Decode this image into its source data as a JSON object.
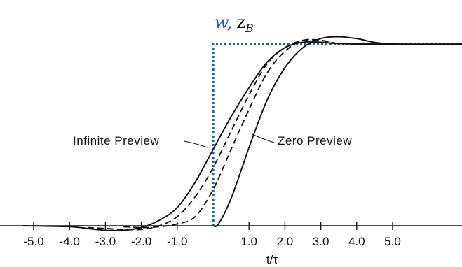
{
  "chart_data": {
    "type": "line",
    "xlabel": "t/τ",
    "ylabel": {
      "w": "w",
      "comma": ",",
      "z": "z",
      "sub": "B"
    },
    "xlim": [
      -6.0,
      8.0
    ],
    "ylim": [
      0,
      1.15
    ],
    "ticks": [
      -5.0,
      -4.0,
      -3.0,
      -2.0,
      -1.0,
      1.0,
      2.0,
      3.0,
      4.0,
      5.0
    ],
    "tick_labels": [
      "-5.0",
      "-4.0",
      "-3.0",
      "-2.0",
      "-1.0",
      "1.0",
      "2.0",
      "3.0",
      "4.0",
      "5.0"
    ],
    "grid": false,
    "annotations": [
      {
        "text": "Infinite Preview",
        "x": -4.4,
        "y": 0.46
      },
      {
        "text": "Zero Preview",
        "x": 1.6,
        "y": 0.46
      }
    ],
    "series": [
      {
        "style": "dotted",
        "color": "#1f5fb0",
        "points": [
          [
            0,
            0
          ],
          [
            0,
            1.0
          ],
          [
            7.8,
            1.0
          ]
        ]
      },
      {
        "style": "solid",
        "color": "#111111",
        "points": [
          [
            -5.3,
            0.0
          ],
          [
            -4.0,
            -0.005
          ],
          [
            -3.5,
            -0.015
          ],
          [
            -3.0,
            -0.025
          ],
          [
            -2.5,
            -0.025
          ],
          [
            -2.0,
            -0.01
          ],
          [
            -1.5,
            0.03
          ],
          [
            -1.0,
            0.1
          ],
          [
            -0.5,
            0.24
          ],
          [
            0,
            0.42
          ],
          [
            0.5,
            0.6
          ],
          [
            1.0,
            0.76
          ],
          [
            1.5,
            0.9
          ],
          [
            2.0,
            0.98
          ],
          [
            2.5,
            1.01
          ],
          [
            3.0,
            1.01
          ],
          [
            4.0,
            1.0
          ],
          [
            7.8,
            1.0
          ]
        ]
      },
      {
        "style": "dashed",
        "color": "#111111",
        "points": [
          [
            -3.5,
            -0.01
          ],
          [
            -3.0,
            -0.015
          ],
          [
            -2.5,
            -0.02
          ],
          [
            -2.0,
            -0.02
          ],
          [
            -1.5,
            0.0
          ],
          [
            -1.0,
            0.05
          ],
          [
            -0.5,
            0.16
          ],
          [
            0,
            0.32
          ],
          [
            0.5,
            0.52
          ],
          [
            1.0,
            0.72
          ],
          [
            1.5,
            0.89
          ],
          [
            2.0,
            0.98
          ],
          [
            2.5,
            1.02
          ],
          [
            3.0,
            1.02
          ],
          [
            3.5,
            1.0
          ]
        ]
      },
      {
        "style": "dashed",
        "color": "#111111",
        "points": [
          [
            -2.5,
            -0.005
          ],
          [
            -2.0,
            -0.01
          ],
          [
            -1.5,
            -0.005
          ],
          [
            -1.0,
            0.01
          ],
          [
            -0.5,
            0.05
          ],
          [
            0,
            0.2
          ],
          [
            0.5,
            0.42
          ],
          [
            1.0,
            0.64
          ],
          [
            1.5,
            0.84
          ],
          [
            2.0,
            0.96
          ],
          [
            2.5,
            1.02
          ],
          [
            3.0,
            1.02
          ],
          [
            3.5,
            1.0
          ]
        ]
      },
      {
        "style": "solid",
        "color": "#111111",
        "points": [
          [
            0,
            0.0
          ],
          [
            0.15,
            0.01
          ],
          [
            0.5,
            0.15
          ],
          [
            1.0,
            0.43
          ],
          [
            1.5,
            0.69
          ],
          [
            2.0,
            0.87
          ],
          [
            2.5,
            0.98
          ],
          [
            3.0,
            1.03
          ],
          [
            3.5,
            1.04
          ],
          [
            4.0,
            1.03
          ],
          [
            5.0,
            1.0
          ],
          [
            7.8,
            1.0
          ]
        ]
      }
    ]
  }
}
